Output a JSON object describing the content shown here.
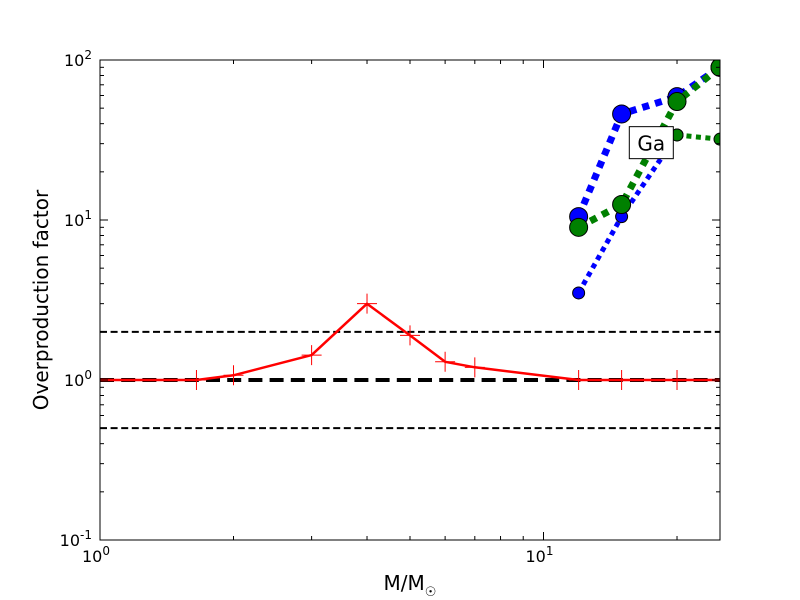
{
  "chart_data": {
    "type": "line",
    "title": "",
    "xlabel": "M/M",
    "xlabel_sub": "☉",
    "ylabel": "Overproduction factor",
    "xscale": "log",
    "yscale": "log",
    "xlim": [
      1,
      25
    ],
    "ylim": [
      0.1,
      100
    ],
    "x_ticks": [
      {
        "value": 1,
        "base": "10",
        "exp": "0"
      },
      {
        "value": 10,
        "base": "10",
        "exp": "1"
      }
    ],
    "y_ticks": [
      {
        "value": 0.1,
        "base": "10",
        "exp": "-1"
      },
      {
        "value": 1,
        "base": "10",
        "exp": "0"
      },
      {
        "value": 10,
        "base": "10",
        "exp": "1"
      },
      {
        "value": 100,
        "base": "10",
        "exp": "2"
      }
    ],
    "grid": false,
    "reference_lines": [
      {
        "y": 2,
        "style": "dashed",
        "color": "#000000",
        "width": 2
      },
      {
        "y": 1,
        "style": "dashed",
        "color": "#000000",
        "width": 4
      },
      {
        "y": 0.5,
        "style": "dashed",
        "color": "#000000",
        "width": 2
      }
    ],
    "annotations": [
      {
        "text": "Ga",
        "x": 17.5,
        "y": 30
      }
    ],
    "series": [
      {
        "color": "#ff0000",
        "linestyle": "solid",
        "linewidth": 2.5,
        "marker": "plus",
        "marker_size": 20,
        "x": [
          1,
          1.65,
          2,
          3,
          4,
          5,
          6,
          7,
          12,
          15,
          20,
          25
        ],
        "y": [
          1.0,
          1.0,
          1.07,
          1.43,
          3.0,
          1.9,
          1.3,
          1.2,
          1.0,
          1.0,
          1.0,
          1.0
        ]
      },
      {
        "color": "#0000ff",
        "linestyle": "dotted",
        "linewidth": 7,
        "marker": "circle",
        "marker_size": 18,
        "x": [
          12,
          15,
          20,
          25
        ],
        "y": [
          10.5,
          46,
          59,
          90
        ]
      },
      {
        "color": "#0000ff",
        "linestyle": "dotted",
        "linewidth": 5,
        "marker": "circle",
        "marker_size": 12,
        "x": [
          12,
          15,
          20
        ],
        "y": [
          3.5,
          10.5,
          34
        ]
      },
      {
        "color": "#008000",
        "linestyle": "dotted",
        "linewidth": 7,
        "marker": "circle",
        "marker_size": 18,
        "x": [
          12,
          15,
          20,
          25
        ],
        "y": [
          9.0,
          12.5,
          55,
          90
        ]
      },
      {
        "color": "#008000",
        "linestyle": "dotted",
        "linewidth": 5,
        "marker": "circle",
        "marker_size": 12,
        "x": [
          20,
          25
        ],
        "y": [
          34,
          32
        ]
      }
    ]
  }
}
